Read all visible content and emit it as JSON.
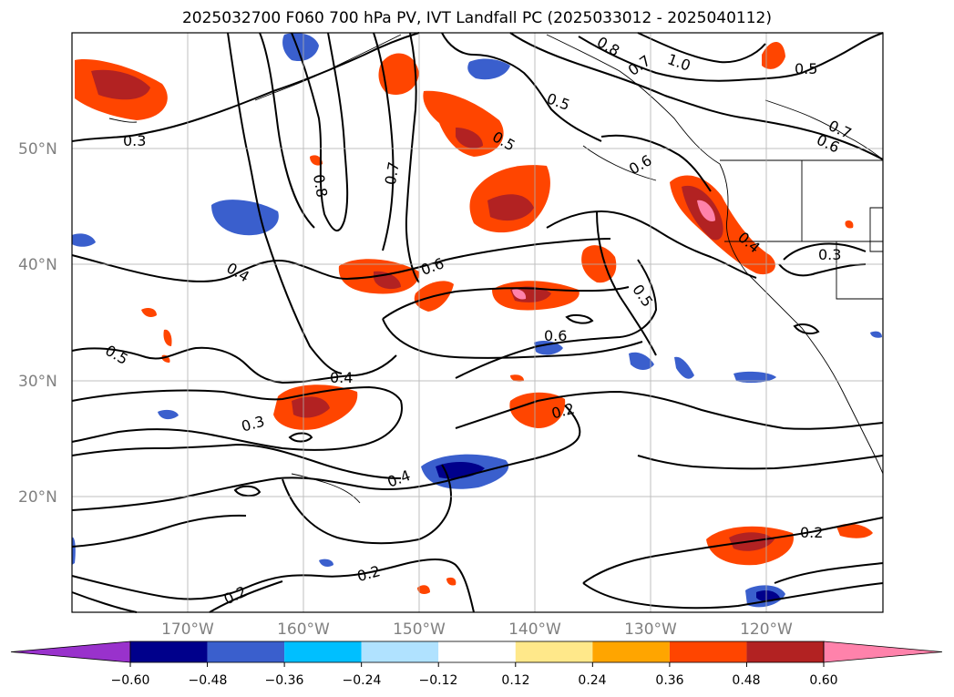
{
  "title": "2025032700 F060 700 hPa PV, IVT Landfall PC (2025033012 - 2025040112)",
  "map": {
    "lat_labels": [
      "50°N",
      "40°N",
      "30°N",
      "20°N"
    ],
    "lon_labels": [
      "170°W",
      "160°W",
      "150°W",
      "140°W",
      "130°W",
      "120°W"
    ],
    "contour_labels": [
      "0.3",
      "0.8",
      "0.7",
      "0.8",
      "0.7",
      "1.0",
      "0.5",
      "0.5",
      "0.5",
      "0.6",
      "0.7",
      "0.6",
      "0.4",
      "0.6",
      "0.5",
      "0.4",
      "0.3",
      "0.5",
      "0.6",
      "0.4",
      "0.3",
      "0.2",
      "0.4",
      "0.2",
      "0.2",
      "0.2"
    ]
  },
  "colorbar": {
    "ticks": [
      "−0.60",
      "−0.48",
      "−0.36",
      "−0.24",
      "−0.12",
      "0.12",
      "0.24",
      "0.36",
      "0.48",
      "0.60"
    ],
    "colors": [
      "#9932cc",
      "#00008b",
      "#3a5fcd",
      "#00bfff",
      "#b0e2ff",
      "#ffffff",
      "#ffe88a",
      "#ffa500",
      "#ff4500",
      "#b22222",
      "#ff82ab",
      "#ff82ab"
    ]
  }
}
